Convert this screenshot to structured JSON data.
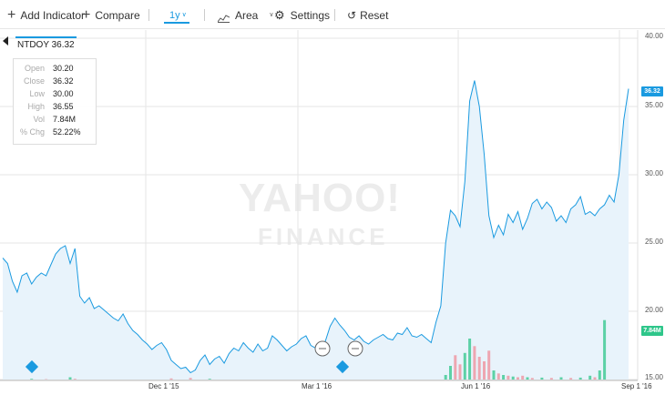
{
  "toolbar": {
    "add_indicator": "Add Indicator",
    "compare": "Compare",
    "range": "1y",
    "chart_type": "Area",
    "settings": "Settings",
    "reset": "Reset"
  },
  "legend": {
    "symbol_price": "NTDOY 36.32"
  },
  "info": [
    {
      "k": "Open",
      "v": "30.20"
    },
    {
      "k": "Close",
      "v": "36.32"
    },
    {
      "k": "Low",
      "v": "30.00"
    },
    {
      "k": "High",
      "v": "36.55"
    },
    {
      "k": "Vol",
      "v": "7.84M"
    },
    {
      "k": "% Chg",
      "v": "52.22%"
    }
  ],
  "watermark": {
    "line1": "YAHOO!",
    "line2": "FINANCE"
  },
  "badges": {
    "price": "36.32",
    "volume": "7.84M"
  },
  "colors": {
    "accent": "#1a9ae0",
    "area": "#e8f3fb",
    "vol_up": "#2ec68a",
    "vol_down": "#f08c98"
  },
  "chart_data": {
    "type": "area",
    "yticks": [
      "40.00",
      "35.00",
      "30.00",
      "25.00",
      "20.00",
      "15.00"
    ],
    "xticks": [
      "Dec 1 '15",
      "Mar 1 '16",
      "Jun 1 '16",
      "Sep 1 '16"
    ],
    "ylim": [
      15,
      40
    ],
    "series": [
      {
        "values": [
          23.9,
          23.5,
          22.2,
          21.4,
          22.6,
          22.8,
          22.0,
          22.5,
          22.8,
          22.6,
          23.4,
          24.2,
          24.6,
          24.8,
          23.5,
          24.6,
          21.1,
          20.6,
          21.0,
          20.2,
          20.4,
          20.1,
          19.8,
          19.5,
          19.3,
          19.8,
          19.1,
          18.6,
          18.3,
          17.9,
          17.6,
          17.2,
          17.5,
          17.7,
          17.2,
          16.4,
          16.1,
          15.8,
          15.9,
          15.5,
          15.7,
          16.4,
          16.8,
          16.1,
          16.5,
          16.7,
          16.2,
          16.9,
          17.3,
          17.1,
          17.7,
          17.3,
          17.0,
          17.6,
          17.1,
          17.3,
          18.2,
          17.9,
          17.5,
          17.1,
          17.4,
          17.6,
          18.0,
          18.2,
          17.5,
          17.3,
          17.6,
          17.8,
          18.9,
          19.5,
          19.0,
          18.6,
          18.1,
          17.9,
          18.2,
          17.8,
          17.6,
          17.9,
          18.1,
          18.3,
          18.0,
          17.9,
          18.4,
          18.3,
          18.8,
          18.2,
          18.1,
          18.3,
          18.0,
          17.7,
          19.2,
          20.4,
          25.0,
          27.4,
          27.0,
          26.2,
          29.5,
          35.4,
          36.9,
          35.0,
          31.5,
          27.0,
          25.4,
          26.3,
          25.6,
          27.1,
          26.5,
          27.3,
          26.0,
          26.8,
          27.9,
          28.2,
          27.5,
          28.0,
          27.6,
          26.6,
          27.0,
          26.5,
          27.5,
          27.8,
          28.4,
          27.1,
          27.3,
          27.0,
          27.5,
          27.8,
          28.5,
          28.0,
          30.0,
          34.0,
          36.3
        ]
      }
    ],
    "volume": [
      {
        "i": 6,
        "v": 0.1,
        "up": true
      },
      {
        "i": 9,
        "v": 0.05,
        "up": false
      },
      {
        "i": 14,
        "v": 0.3,
        "up": true
      },
      {
        "i": 15,
        "v": 0.1,
        "up": false
      },
      {
        "i": 35,
        "v": 0.15,
        "up": false
      },
      {
        "i": 39,
        "v": 0.2,
        "up": false
      },
      {
        "i": 43,
        "v": 0.1,
        "up": true
      },
      {
        "i": 92,
        "v": 0.6,
        "up": true
      },
      {
        "i": 93,
        "v": 1.8,
        "up": true
      },
      {
        "i": 94,
        "v": 3.2,
        "up": false
      },
      {
        "i": 95,
        "v": 2.0,
        "up": false
      },
      {
        "i": 96,
        "v": 3.5,
        "up": true
      },
      {
        "i": 97,
        "v": 5.4,
        "up": true
      },
      {
        "i": 98,
        "v": 4.4,
        "up": false
      },
      {
        "i": 99,
        "v": 3.0,
        "up": false
      },
      {
        "i": 100,
        "v": 2.4,
        "up": false
      },
      {
        "i": 101,
        "v": 3.8,
        "up": false
      },
      {
        "i": 102,
        "v": 1.2,
        "up": true
      },
      {
        "i": 103,
        "v": 0.8,
        "up": false
      },
      {
        "i": 104,
        "v": 0.6,
        "up": true
      },
      {
        "i": 105,
        "v": 0.5,
        "up": false
      },
      {
        "i": 106,
        "v": 0.4,
        "up": true
      },
      {
        "i": 107,
        "v": 0.3,
        "up": false
      },
      {
        "i": 108,
        "v": 0.5,
        "up": false
      },
      {
        "i": 109,
        "v": 0.3,
        "up": true
      },
      {
        "i": 110,
        "v": 0.2,
        "up": false
      },
      {
        "i": 112,
        "v": 0.25,
        "up": true
      },
      {
        "i": 114,
        "v": 0.2,
        "up": false
      },
      {
        "i": 116,
        "v": 0.3,
        "up": true
      },
      {
        "i": 118,
        "v": 0.2,
        "up": false
      },
      {
        "i": 120,
        "v": 0.25,
        "up": true
      },
      {
        "i": 122,
        "v": 0.5,
        "up": true
      },
      {
        "i": 123,
        "v": 0.3,
        "up": false
      },
      {
        "i": 124,
        "v": 1.2,
        "up": true
      },
      {
        "i": 125,
        "v": 7.84,
        "up": true
      }
    ]
  }
}
